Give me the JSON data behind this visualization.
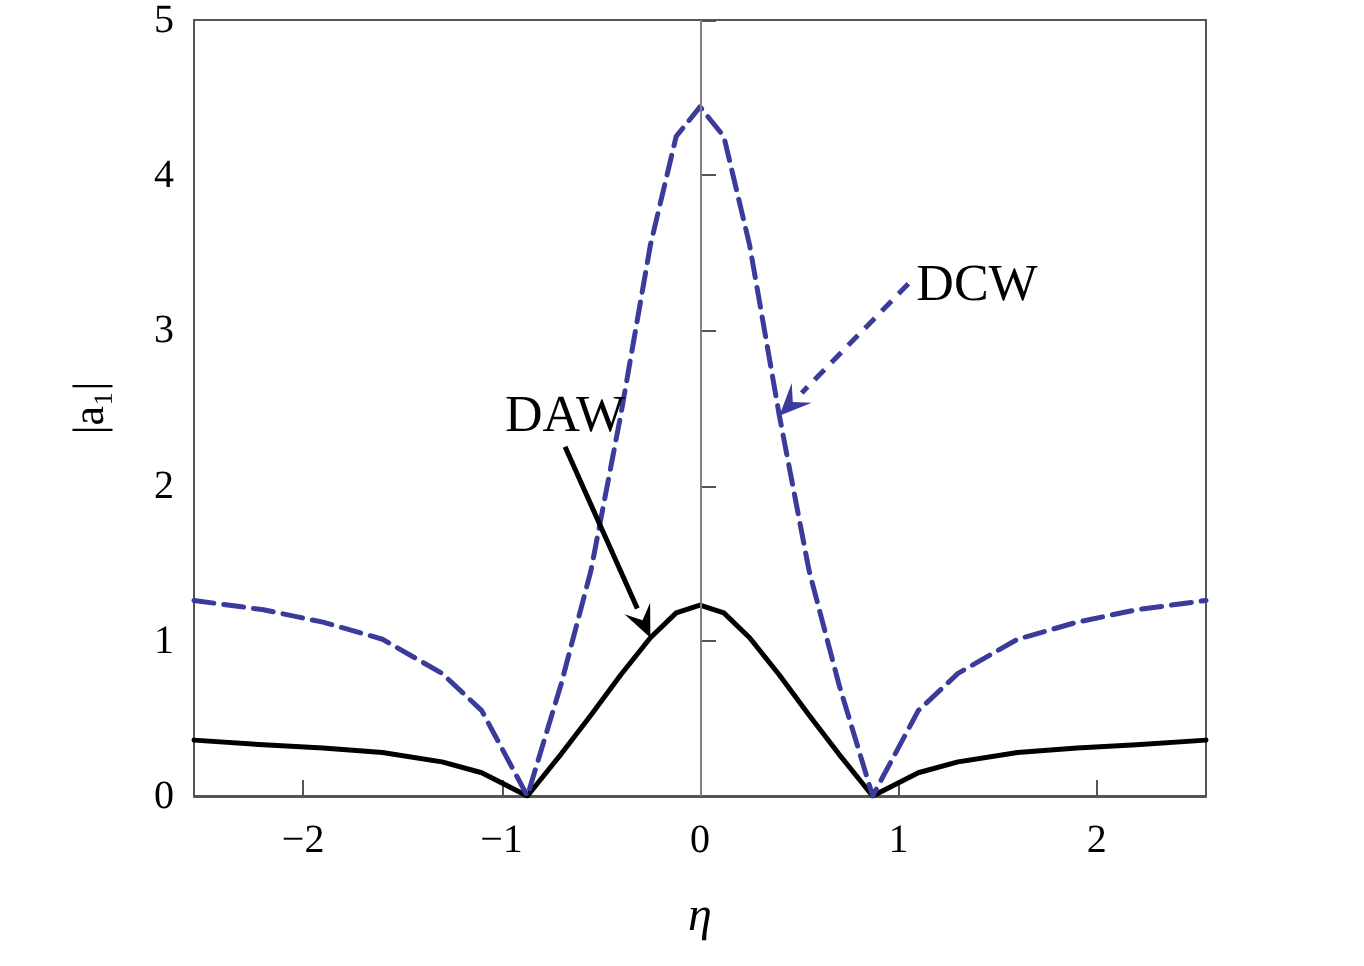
{
  "chart_data": {
    "type": "line",
    "xlabel": "η",
    "ylabel": "|a₁|",
    "x": [
      -2.55,
      -2.2,
      -1.9,
      -1.6,
      -1.3,
      -1.1,
      -0.87,
      -0.7,
      -0.55,
      -0.4,
      -0.25,
      -0.12,
      0,
      0.12,
      0.25,
      0.4,
      0.55,
      0.7,
      0.87,
      1.1,
      1.3,
      1.6,
      1.9,
      2.2,
      2.55
    ],
    "series": [
      {
        "name": "DAW",
        "color": "#000000",
        "line_style": "solid",
        "values": [
          0.36,
          0.33,
          0.31,
          0.28,
          0.22,
          0.15,
          0,
          0.27,
          0.52,
          0.78,
          1.02,
          1.18,
          1.23,
          1.18,
          1.02,
          0.78,
          0.52,
          0.27,
          0,
          0.15,
          0.22,
          0.28,
          0.31,
          0.33,
          0.36
        ]
      },
      {
        "name": "DCW",
        "color": "#3b3b9c",
        "line_style": "dashed",
        "values": [
          1.26,
          1.2,
          1.12,
          1.01,
          0.79,
          0.55,
          0,
          0.72,
          1.45,
          2.45,
          3.55,
          4.25,
          4.44,
          4.25,
          3.55,
          2.45,
          1.45,
          0.72,
          0,
          0.55,
          0.79,
          1.01,
          1.12,
          1.2,
          1.26
        ]
      }
    ],
    "xlim": [
      -2.55,
      2.55
    ],
    "xticks": [
      -2,
      -1,
      0,
      1,
      2
    ],
    "ylim": [
      0,
      5
    ],
    "yticks": [
      0,
      1,
      2,
      3,
      4,
      5
    ],
    "ref_lines": [
      {
        "axis": "x",
        "value": 0,
        "color": "#808080"
      }
    ],
    "grid": false,
    "legend": false,
    "marker": "none"
  }
}
